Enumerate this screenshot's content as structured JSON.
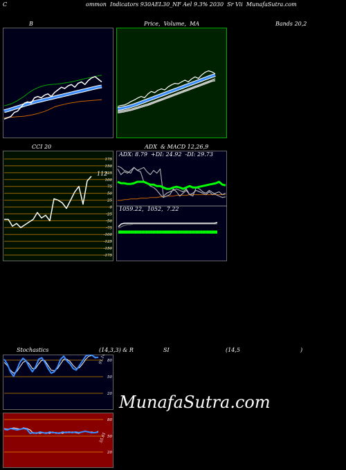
{
  "header": {
    "c": "C",
    "title": "ommon  Indicators 930AEL30_NF Ael 9.3% 2030  Sr Vii  MunafaSutra.com"
  },
  "labels": {
    "b": "B",
    "price": "Price,  Volume,  MA",
    "bands": "Bands 20,2",
    "cci": "CCI 20",
    "adx": "ADX  & MACD 12,26,9",
    "stoch": "Stochastics",
    "stoch_params": "(14,3,3) & R",
    "si": "SI",
    "rsi_params": "(14,5",
    "paren": ")"
  },
  "cci": {
    "value_label": "112",
    "ticks": [
      "175",
      "150",
      "125",
      "100",
      "75",
      "50",
      "25",
      "0",
      "-25",
      "-50",
      "-75",
      "-100",
      "-125",
      "-150",
      "-175"
    ]
  },
  "adx": {
    "readout": "ADX: 8.79  +DI: 24.92  -DI: 29.73",
    "macd_readout": "1059.22,  1052,  7.22"
  },
  "stoch": {
    "ticks": [
      "80",
      "50",
      "20"
    ],
    "value_label": "91.14"
  },
  "rsi": {
    "ticks": [
      "80",
      "50",
      "20"
    ],
    "value_label": "55.61"
  },
  "watermark": "MunafaSutra.com",
  "colors": {
    "panel_dark": "#00001a",
    "price_bg": "#002200",
    "cci_bg": "#001100",
    "rsi_bg": "#880000",
    "blue": "#3b8cff",
    "green": "#00ff00",
    "orange": "#cc6600"
  },
  "chart_data": [
    {
      "type": "line",
      "panel": "bollinger",
      "series": [
        {
          "values": [
            0.0,
            0.5,
            1.0,
            2.5,
            3.0,
            4.5,
            6.0,
            6.5,
            6.0,
            8.0,
            8.5,
            8.0,
            9.0,
            9.5,
            8.5,
            10.0,
            11.0,
            12.0,
            11.5,
            12.5,
            13.0,
            12.0,
            13.5,
            14.0,
            13.0,
            14.5,
            15.5,
            16.0,
            15.0,
            14.0
          ]
        },
        {
          "values": [
            3,
            3.3,
            3.7,
            4.1,
            4.5,
            4.9,
            5.3,
            5.7,
            6.0,
            6.4,
            6.7,
            7.0,
            7.3,
            7.6,
            7.9,
            8.2,
            8.5,
            8.8,
            9.1,
            9.4,
            9.7,
            10.0,
            10.3,
            10.6,
            10.9,
            11.2,
            11.5,
            11.8,
            12.1,
            12.3
          ]
        },
        {
          "values": [
            5,
            5.3,
            5.7,
            6.3,
            7.0,
            7.8,
            8.6,
            9.6,
            10.5,
            11.2,
            11.8,
            12.3,
            12.6,
            12.9,
            13.0,
            13.1,
            13.2,
            13.4,
            13.6,
            13.8,
            14.0,
            14.3,
            14.6,
            14.9,
            15.2,
            15.5,
            15.7,
            16.0,
            16.3,
            16.5
          ]
        },
        {
          "values": [
            0.5,
            0.6,
            0.7,
            0.8,
            0.9,
            1.0,
            1.1,
            1.3,
            1.5,
            1.8,
            2.1,
            2.5,
            2.9,
            3.4,
            4.0,
            4.6,
            5.0,
            5.3,
            5.6,
            5.9,
            6.1,
            6.3,
            6.5,
            6.7,
            6.8,
            6.9,
            7.0,
            7.1,
            7.2,
            7.3
          ]
        }
      ]
    },
    {
      "type": "line",
      "panel": "price",
      "series": [
        {
          "values": [
            3,
            3.4,
            3.6,
            4.2,
            5,
            5.6,
            6.4,
            7,
            6.5,
            8,
            9,
            8.5,
            9.5,
            10,
            9.6,
            10.8,
            11.6,
            12.2,
            12,
            12.8,
            13.5,
            12.8,
            14,
            14.8,
            14.2,
            15.6,
            16.6,
            17.2,
            16.8,
            16
          ]
        },
        {
          "values": [
            2,
            2.2,
            2.5,
            2.8,
            3.2,
            3.6,
            4.1,
            4.6,
            5.1,
            5.6,
            6.1,
            6.6,
            7.1,
            7.6,
            8.1,
            8.6,
            9.1,
            9.6,
            10.1,
            10.6,
            11.1,
            11.6,
            12.1,
            12.6,
            13.1,
            13.6,
            14.1,
            14.6,
            15.1,
            15.5
          ]
        },
        {
          "values": [
            1,
            1.2,
            1.4,
            1.7,
            2,
            2.4,
            2.8,
            3.2,
            3.6,
            4,
            4.5,
            5,
            5.5,
            6,
            6.5,
            7,
            7.5,
            8,
            8.5,
            9,
            9.5,
            10,
            10.5,
            11,
            11.5,
            12,
            12.5,
            13,
            13.5,
            14
          ]
        },
        {
          "values": [
            0.5,
            0.7,
            0.9,
            1.2,
            1.5,
            1.9,
            2.3,
            2.7,
            3.1,
            3.5,
            4,
            4.5,
            5,
            5.5,
            6,
            6.5,
            7,
            7.5,
            8,
            8.5,
            9,
            9.5,
            10,
            10.5,
            11,
            11.5,
            12,
            12.5,
            13,
            13.3
          ]
        }
      ]
    },
    {
      "type": "line",
      "panel": "cci",
      "ylim": [
        -175,
        175
      ],
      "series": [
        {
          "values": [
            -45,
            -45,
            -70,
            -60,
            -75,
            -65,
            -55,
            -45,
            -20,
            -40,
            -30,
            -50,
            30,
            25,
            15,
            -5,
            25,
            55,
            75,
            10,
            95,
            112
          ]
        }
      ]
    },
    {
      "type": "line",
      "panel": "adx",
      "ylim": [
        0,
        60
      ],
      "series": [
        {
          "values": [
            52,
            50,
            46,
            44,
            42,
            50,
            46,
            44,
            30,
            28,
            24,
            22,
            18,
            12,
            8,
            10,
            12,
            20,
            16,
            10,
            14,
            18,
            12,
            10,
            22,
            20,
            16,
            14,
            18,
            15,
            12,
            10,
            8,
            9
          ]
        },
        {
          "values": [
            30,
            28,
            28,
            27,
            27,
            28,
            30,
            30,
            30,
            28,
            26,
            26,
            24,
            24,
            22,
            20,
            20,
            22,
            23,
            22,
            20,
            22,
            24,
            22,
            22,
            23,
            24,
            25,
            26,
            27,
            28,
            30,
            26,
            25
          ]
        },
        {
          "values": [
            48,
            40,
            44,
            42,
            46,
            50,
            46,
            48,
            50,
            44,
            40,
            46,
            42,
            48,
            10,
            14,
            16,
            18,
            20,
            18,
            16,
            20,
            12,
            14,
            18,
            16,
            14,
            12,
            16,
            12,
            14,
            16,
            12,
            14
          ]
        },
        {
          "values": [
            4,
            4,
            5,
            5,
            6,
            6,
            6,
            7,
            7,
            7,
            8,
            8,
            8,
            9,
            9,
            10,
            10,
            10,
            11,
            11,
            11,
            11,
            12,
            12,
            12,
            12,
            12,
            12,
            12,
            12,
            12,
            12,
            12,
            12
          ]
        }
      ]
    },
    {
      "type": "bar",
      "panel": "macd",
      "series": [
        {
          "values": [
            5,
            5,
            5,
            5,
            5,
            5,
            5,
            5,
            5,
            5,
            5,
            5,
            5,
            5,
            5,
            5,
            5,
            5,
            5,
            5,
            5,
            5,
            5,
            5,
            5,
            5,
            5,
            5,
            5,
            5,
            5,
            5,
            5,
            5,
            5,
            5,
            5,
            5,
            5,
            5,
            5,
            5,
            5,
            5,
            5,
            5,
            5,
            5,
            5,
            5,
            5,
            5,
            5,
            5,
            5,
            5,
            5,
            5,
            5,
            5,
            5,
            5,
            5,
            5,
            5,
            5,
            5,
            5,
            5,
            5,
            5,
            5
          ]
        }
      ]
    },
    {
      "type": "line",
      "panel": "macd-lines",
      "series": [
        {
          "values": [
            10,
            14,
            15,
            15,
            15,
            15,
            15,
            15,
            15,
            15,
            15,
            15,
            15,
            15,
            15,
            15,
            15,
            15,
            15,
            15,
            15,
            15,
            15,
            15,
            15,
            15,
            15,
            15,
            15,
            15,
            15,
            15,
            15,
            16
          ]
        },
        {
          "values": [
            8,
            10,
            12,
            13,
            13,
            14,
            14,
            14,
            14,
            14,
            14,
            14,
            14,
            14,
            14,
            14,
            14,
            14,
            14,
            14,
            14,
            14,
            14,
            14,
            14,
            14,
            14,
            14,
            14,
            14,
            14,
            14,
            14,
            14
          ]
        }
      ]
    },
    {
      "type": "line",
      "panel": "stochastics",
      "ylim": [
        0,
        100
      ],
      "series": [
        {
          "values": [
            85,
            70,
            45,
            30,
            50,
            75,
            88,
            80,
            60,
            45,
            60,
            85,
            90,
            75,
            55,
            40,
            45,
            60,
            85,
            95,
            80,
            70,
            55,
            50,
            65,
            80,
            95,
            100,
            98,
            90,
            91
          ]
        },
        {
          "values": [
            75,
            65,
            50,
            40,
            45,
            60,
            75,
            80,
            70,
            55,
            55,
            70,
            82,
            80,
            65,
            50,
            48,
            55,
            70,
            85,
            85,
            78,
            65,
            55,
            58,
            70,
            85,
            95,
            97,
            92,
            90
          ]
        }
      ]
    },
    {
      "type": "line",
      "panel": "rsi",
      "ylim": [
        0,
        100
      ],
      "series": [
        {
          "values": [
            56,
            55,
            57,
            56,
            55,
            56,
            57,
            56,
            50,
            51,
            50,
            52,
            51,
            50,
            52,
            51,
            51,
            50,
            52,
            51,
            52,
            51,
            52,
            51,
            52,
            53,
            52,
            51,
            51,
            52
          ]
        },
        {
          "values": [
            57,
            56,
            57,
            58,
            57,
            56,
            58,
            57,
            55,
            50,
            51,
            50,
            51,
            51,
            50,
            52,
            50,
            51,
            50,
            52,
            51,
            52,
            51,
            50,
            52,
            53,
            52,
            52,
            51,
            53
          ]
        }
      ]
    }
  ]
}
